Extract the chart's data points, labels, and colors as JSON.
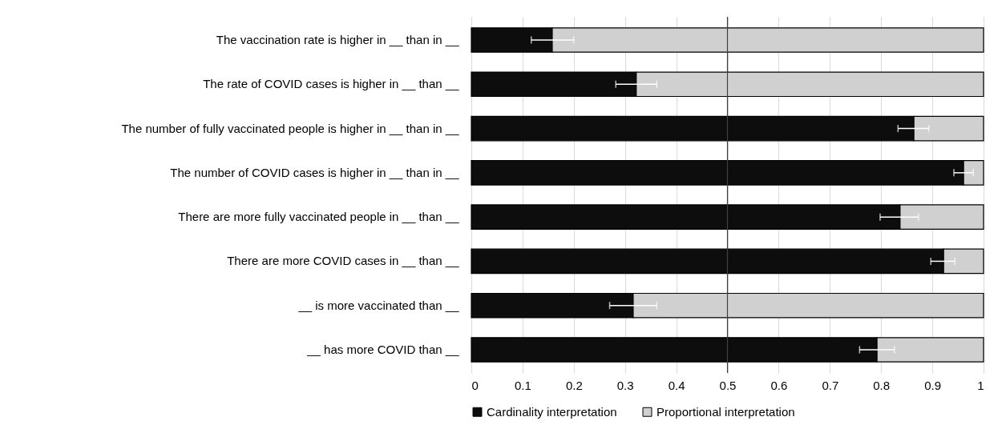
{
  "chart_data": {
    "type": "bar",
    "orientation": "horizontal",
    "stacked": true,
    "categories": [
      "The vaccination rate is higher in __ than in __",
      "The rate of COVID cases is higher in __ than __",
      "The number of fully vaccinated people is higher in __ than in __",
      "The number of COVID cases is higher in __ than in __",
      "There are more fully vaccinated people in __ than __",
      "There are more COVID cases in __ than __",
      "__ is more vaccinated than __",
      "__ has more COVID than __"
    ],
    "series": [
      {
        "name": "Cardinality interpretation",
        "color": "#0d0d0d",
        "values": [
          0.158,
          0.322,
          0.864,
          0.961,
          0.837,
          0.922,
          0.316,
          0.792
        ],
        "errors": [
          [
            0.117,
            0.2
          ],
          [
            0.282,
            0.362
          ],
          [
            0.833,
            0.893
          ],
          [
            0.942,
            0.98
          ],
          [
            0.798,
            0.873
          ],
          [
            0.897,
            0.944
          ],
          [
            0.27,
            0.362
          ],
          [
            0.758,
            0.826
          ]
        ]
      },
      {
        "name": "Proportional interpretation",
        "color": "#d0d0d0",
        "values": [
          0.842,
          0.678,
          0.136,
          0.039,
          0.163,
          0.078,
          0.684,
          0.208
        ]
      }
    ],
    "xlim": [
      0,
      1
    ],
    "xticks": [
      0,
      0.1,
      0.2,
      0.3,
      0.4,
      0.5,
      0.6,
      0.7,
      0.8,
      0.9,
      1
    ],
    "ref_lines": [
      {
        "axis": "x",
        "value": 0.5,
        "color": "#404040"
      }
    ],
    "grid": "x",
    "legend": "bottom"
  }
}
